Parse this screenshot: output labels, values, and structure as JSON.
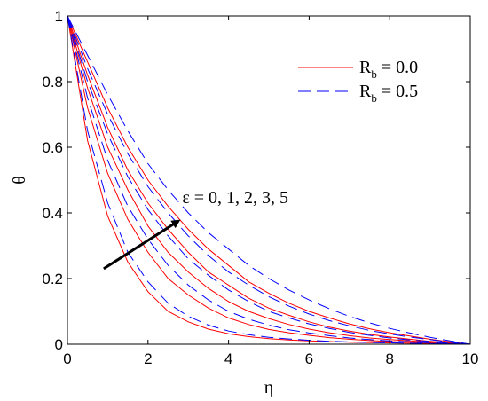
{
  "chart_data": {
    "type": "line",
    "xlabel": "η",
    "ylabel": "θ",
    "xlim": [
      0,
      10
    ],
    "ylim": [
      0,
      1
    ],
    "xticks": [
      "0",
      "2",
      "4",
      "6",
      "8",
      "10"
    ],
    "yticks": [
      "0",
      "0.2",
      "0.4",
      "0.6",
      "0.8",
      "1"
    ],
    "grid": false,
    "legend_position": "top-right",
    "legend": [
      {
        "base": "R",
        "sub": "b",
        "rest": " = 0.0",
        "color": "#ff0000",
        "style": "solid"
      },
      {
        "base": "R",
        "sub": "b",
        "rest": " = 0.5",
        "color": "#0000ff",
        "style": "dashed"
      }
    ],
    "annotation": {
      "text": "ε = 0, 1, 2, 3, 5",
      "arrow_from": {
        "x": 0.9,
        "y": 0.23
      },
      "arrow_to": {
        "x": 2.75,
        "y": 0.375
      },
      "text_at": {
        "x": 2.85,
        "y": 0.43
      }
    },
    "x": [
      0,
      0.5,
      1,
      1.5,
      2,
      2.5,
      3,
      3.5,
      4,
      4.5,
      5,
      5.5,
      6,
      6.5,
      7,
      7.5,
      8,
      8.5,
      9,
      9.5,
      10
    ],
    "series": [
      {
        "color": "#ff0000",
        "style": "solid",
        "values": [
          1,
          0.62,
          0.39,
          0.25,
          0.16,
          0.1,
          0.068,
          0.046,
          0.032,
          0.023,
          0.017,
          0.013,
          0.01,
          0.008,
          0.006,
          0.005,
          0.004,
          0.003,
          0.002,
          0.001,
          0
        ]
      },
      {
        "color": "#ff0000",
        "style": "solid",
        "values": [
          1,
          0.72,
          0.52,
          0.38,
          0.28,
          0.2,
          0.15,
          0.11,
          0.08,
          0.06,
          0.045,
          0.035,
          0.027,
          0.02,
          0.015,
          0.011,
          0.008,
          0.006,
          0.004,
          0.002,
          0
        ]
      },
      {
        "color": "#ff0000",
        "style": "solid",
        "values": [
          1,
          0.78,
          0.6,
          0.47,
          0.36,
          0.28,
          0.22,
          0.17,
          0.13,
          0.1,
          0.078,
          0.06,
          0.046,
          0.035,
          0.026,
          0.019,
          0.014,
          0.01,
          0.006,
          0.003,
          0
        ]
      },
      {
        "color": "#ff0000",
        "style": "solid",
        "values": [
          1,
          0.82,
          0.66,
          0.53,
          0.43,
          0.35,
          0.28,
          0.22,
          0.18,
          0.14,
          0.11,
          0.088,
          0.068,
          0.052,
          0.04,
          0.03,
          0.022,
          0.015,
          0.009,
          0.004,
          0
        ]
      },
      {
        "color": "#ff0000",
        "style": "solid",
        "values": [
          1,
          0.86,
          0.72,
          0.6,
          0.5,
          0.42,
          0.35,
          0.29,
          0.24,
          0.19,
          0.155,
          0.125,
          0.1,
          0.08,
          0.062,
          0.047,
          0.035,
          0.025,
          0.015,
          0.007,
          0
        ]
      },
      {
        "color": "#0000ff",
        "style": "dashed",
        "values": [
          1,
          0.65,
          0.43,
          0.28,
          0.19,
          0.125,
          0.085,
          0.058,
          0.04,
          0.029,
          0.021,
          0.016,
          0.012,
          0.009,
          0.007,
          0.005,
          0.004,
          0.003,
          0.002,
          0.001,
          0
        ]
      },
      {
        "color": "#0000ff",
        "style": "dashed",
        "values": [
          1,
          0.75,
          0.56,
          0.42,
          0.32,
          0.24,
          0.18,
          0.135,
          0.1,
          0.076,
          0.058,
          0.044,
          0.034,
          0.026,
          0.019,
          0.014,
          0.01,
          0.007,
          0.004,
          0.002,
          0
        ]
      },
      {
        "color": "#0000ff",
        "style": "dashed",
        "values": [
          1,
          0.8,
          0.64,
          0.51,
          0.41,
          0.33,
          0.26,
          0.21,
          0.165,
          0.13,
          0.1,
          0.08,
          0.062,
          0.048,
          0.036,
          0.027,
          0.019,
          0.013,
          0.008,
          0.004,
          0
        ]
      },
      {
        "color": "#0000ff",
        "style": "dashed",
        "values": [
          1,
          0.84,
          0.7,
          0.58,
          0.48,
          0.4,
          0.33,
          0.27,
          0.22,
          0.18,
          0.145,
          0.116,
          0.092,
          0.072,
          0.056,
          0.042,
          0.031,
          0.022,
          0.014,
          0.006,
          0
        ]
      },
      {
        "color": "#0000ff",
        "style": "dashed",
        "values": [
          1,
          0.88,
          0.76,
          0.65,
          0.55,
          0.47,
          0.4,
          0.34,
          0.29,
          0.24,
          0.2,
          0.165,
          0.135,
          0.108,
          0.085,
          0.065,
          0.048,
          0.034,
          0.021,
          0.01,
          0
        ]
      }
    ]
  }
}
